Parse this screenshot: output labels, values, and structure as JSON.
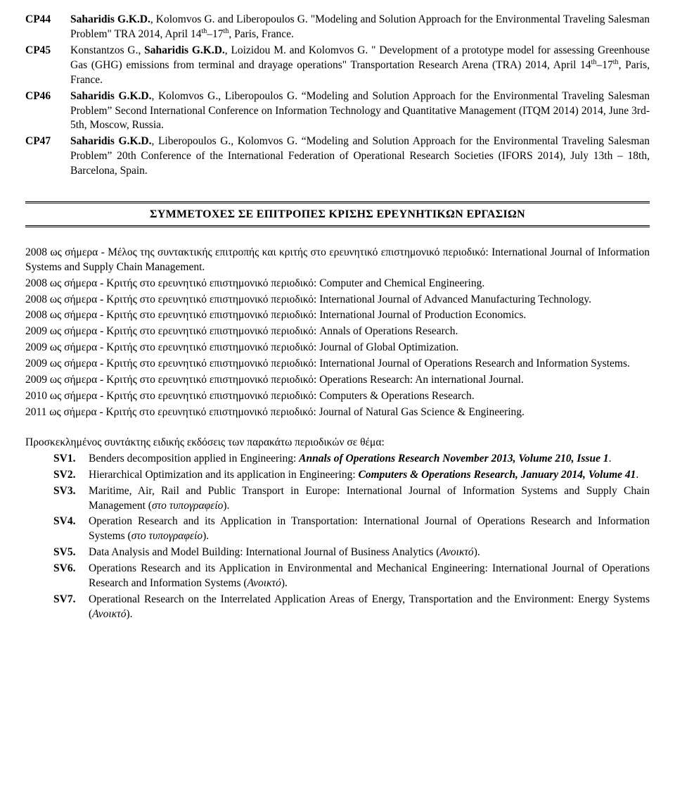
{
  "cp": [
    {
      "code": "CP44",
      "html": "<b>Saharidis G.K.D.</b>, Kolomvos G. and Liberopoulos G. \"Modeling and Solution Approach for the Environmental Traveling Salesman Problem\" TRA 2014, April 14<span class='sup'>th</span>–17<span class='sup'>th</span>, Paris, France."
    },
    {
      "code": "CP45",
      "html": "Konstantzos G., <b>Saharidis G.K.D.</b>, Loizidou M. and Kolomvos G. \" Development of a prototype model for assessing Greenhouse Gas (GHG) emissions from terminal and drayage operations\" Transportation Research Arena (TRA) 2014, April 14<span class='sup'>th</span>–17<span class='sup'>th</span>, Paris, France."
    },
    {
      "code": "CP46",
      "html": "<b>Saharidis G.K.D.</b>, Kolomvos G., Liberopoulos G. “Modeling and Solution Approach for the Environmental Traveling Salesman Problem” Second International Conference on Information Technology and Quantitative Management (ITQM 2014) 2014, June 3rd-5th, Moscow, Russia."
    },
    {
      "code": "CP47",
      "html": "<b>Saharidis G.K.D.</b>, Liberopoulos G., Kolomvos G. “Modeling and Solution Approach for the Environmental Traveling Salesman Problem” 20th Conference of the International Federation of Operational Research Societies (IFORS 2014), July 13th – 18th, Barcelona, Spain."
    }
  ],
  "section_title": "ΣΥΜΜΕΤΟΧΕΣ ΣΕ ΕΠΙΤΡΟΠΕΣ ΚΡΙΣΗΣ ΕΡΕΥΝΗΤΙΚΩΝ ΕΡΓΑΣΙΩΝ",
  "reviews": [
    "2008 ως σήμερα - Μέλος της συντακτικής επιτροπής και κριτής στο ερευνητικό επιστημονικό περιοδικό: International Journal of Information Systems and Supply Chain Management.",
    "2008 ως σήμερα - Κριτής στο ερευνητικό επιστημονικό περιοδικό: Computer and Chemical Engineering.",
    "2008 ως σήμερα - Κριτής στο ερευνητικό επιστημονικό περιοδικό: International Journal of Advanced Manufacturing Technology.",
    "2008 ως σήμερα - Κριτής στο ερευνητικό επιστημονικό περιοδικό: International Journal of Production Economics.",
    "2009 ως σήμερα - Κριτής στο ερευνητικό επιστημονικό περιοδικό: Annals of Operations Research.",
    "2009 ως σήμερα - Κριτής στο ερευνητικό επιστημονικό περιοδικό: Journal of Global Optimization.",
    "2009 ως σήμερα - Κριτής στο ερευνητικό επιστημονικό περιοδικό: International Journal of Operations Research and Information Systems.",
    "2009 ως σήμερα - Κριτής στο ερευνητικό επιστημονικό περιοδικό: Operations Research: An international Journal.",
    "2010 ως σήμερα - Κριτής στο ερευνητικό επιστημονικό περιοδικό: Computers & Operations Research.",
    "2011 ως σήμερα - Κριτής στο ερευνητικό επιστημονικό περιοδικό: Journal of Natural Gas Science & Engineering."
  ],
  "guest_intro": "Προσκεκλημένος συντάκτης ειδικής εκδόσεις των παρακάτω περιοδικών σε θέμα:",
  "sv": [
    {
      "code": "SV1.",
      "html": "Benders decomposition applied in Engineering: <span class='bital'>Annals of Operations Research November 2013, Volume 210, Issue 1</span>."
    },
    {
      "code": "SV2.",
      "html": "Hierarchical Optimization and its application in Engineering: <span class='bital'>Computers &amp; Operations Research, January 2014, Volume 41</span>."
    },
    {
      "code": "SV3.",
      "html": "Maritime, Air, Rail and Public Transport in Europe: International Journal of Information Systems and Supply Chain Management (<span class='ital'>στο τυπογραφείο</span>)."
    },
    {
      "code": "SV4.",
      "html": "Operation Research and its Application in Transportation: International Journal of Operations Research and Information Systems (<span class='ital'>στο τυπογραφείο</span>)."
    },
    {
      "code": "SV5.",
      "html": "Data Analysis and Model Building: International Journal of Business Analytics (<span class='ital'>Ανοικτό</span>)."
    },
    {
      "code": "SV6.",
      "html": "Operations Research and its Application in Environmental and Mechanical Engineering: International Journal of Operations Research and Information Systems (<span class='ital'>Ανοικτό</span>)."
    },
    {
      "code": "SV7.",
      "html": "Operational Research on the Interrelated Application Areas of Energy, Transportation and the Environment: Energy Systems (<span class='ital'>Ανοικτό</span>)."
    }
  ]
}
